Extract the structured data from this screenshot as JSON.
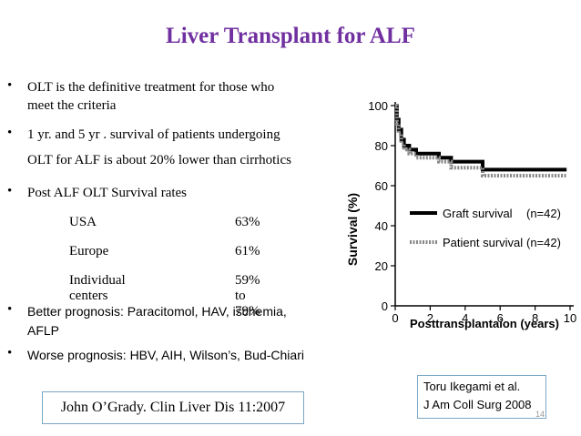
{
  "title": "Liver Transplant for ALF",
  "bullets": [
    {
      "line1": "OLT is the definitive  treatment for those who",
      "line2": "meet the criteria"
    },
    {
      "line1": "1 yr. and 5 yr . survival of patients undergoing",
      "line2": "OLT for ALF is about 20% lower than cirrhotics"
    },
    {
      "line1": "Post ALF OLT Survival rates"
    },
    {
      "line1": "Better prognosis: Paracitomol, HAV, ischemia,",
      "line2": "AFLP"
    },
    {
      "line1": "Worse prognosis: HBV, AIH, Wilson’s, Bud-Chiari"
    }
  ],
  "survival_rates": [
    {
      "region": "USA",
      "rate": "63%"
    },
    {
      "region": "Europe",
      "rate": "61%"
    },
    {
      "region": "Individual centers",
      "rate": "59% to 79%"
    }
  ],
  "citation": "John O’Grady. Clin Liver Dis 11:2007",
  "reference": {
    "line1": "Toru Ikegami et al.",
    "line2": "J Am Coll Surg 2008"
  },
  "page_number": "14",
  "chart_data": {
    "type": "line",
    "title": "",
    "xlabel": "Posttransplantaion (years)",
    "ylabel": "Survival (%)",
    "xlim": [
      0,
      10
    ],
    "ylim": [
      0,
      100
    ],
    "x_ticks": [
      "0",
      "2",
      "4",
      "6",
      "8",
      "10"
    ],
    "y_ticks": [
      "0",
      "20",
      "40",
      "60",
      "80",
      "100"
    ],
    "series": [
      {
        "name": "Graft survival",
        "n_label": "(n=42)",
        "x": [
          0,
          0.1,
          0.1,
          0.2,
          0.2,
          0.35,
          0.35,
          0.5,
          0.5,
          0.8,
          0.8,
          1.2,
          1.2,
          2.5,
          2.5,
          3.2,
          3.2,
          5.0,
          5.0,
          9.8
        ],
        "y": [
          100,
          100,
          93,
          93,
          88,
          88,
          83,
          83,
          80,
          80,
          78,
          78,
          76,
          76,
          74,
          74,
          72,
          72,
          68,
          68
        ]
      },
      {
        "name": "Patient survival",
        "n_label": "(n=42)",
        "x": [
          0,
          0.1,
          0.1,
          0.2,
          0.2,
          0.35,
          0.35,
          0.5,
          0.5,
          0.8,
          0.8,
          1.2,
          1.2,
          2.5,
          2.5,
          3.2,
          3.2,
          5.0,
          5.0,
          9.8
        ],
        "y": [
          100,
          100,
          91,
          91,
          86,
          86,
          81,
          81,
          78,
          78,
          76,
          76,
          74,
          74,
          72,
          72,
          69,
          69,
          65,
          65
        ]
      }
    ]
  },
  "colors": {
    "title": "#7030a0",
    "box_border": "#7aa7c7"
  }
}
